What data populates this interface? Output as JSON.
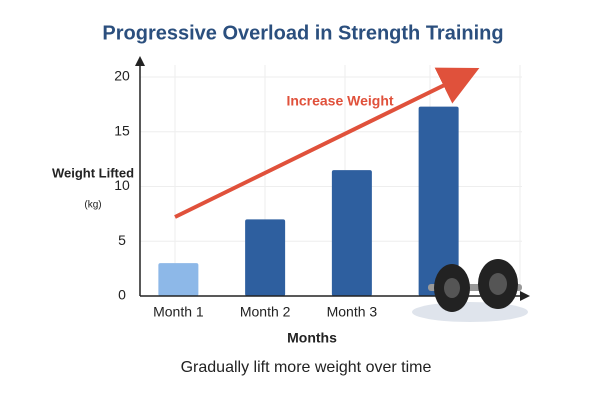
{
  "chart_data": {
    "type": "bar",
    "title": "Progressive Overload in Strength Training",
    "subtitle": "Gradually lift more weight over time",
    "y_label": "Weight Lifted",
    "y_unit": "(kg)",
    "x_label": "Months",
    "annotation": "Increase Weight",
    "categories": [
      "Month 1",
      "Month 2",
      "Month 3",
      null
    ],
    "values": [
      3,
      7,
      11.5,
      17.3
    ],
    "colors": [
      "#8db8e8",
      "#2e5f9f",
      "#2e5f9f",
      "#2e5f9f"
    ],
    "ylim": [
      0,
      20
    ],
    "yticks": [
      0,
      5,
      10,
      15,
      20
    ],
    "grid": true
  }
}
